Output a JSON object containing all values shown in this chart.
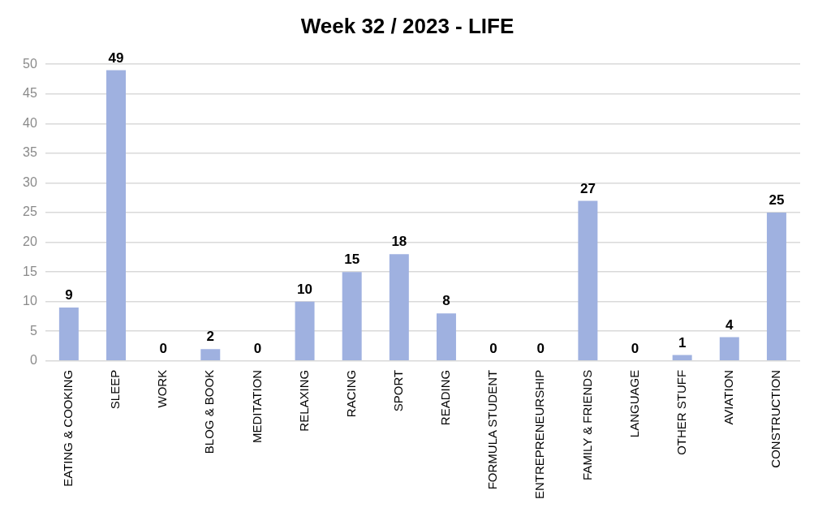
{
  "chart_data": {
    "type": "bar",
    "title": "Week 32 / 2023 - LIFE",
    "categories": [
      "EATING & COOKING",
      "SLEEP",
      "WORK",
      "BLOG & BOOK",
      "MEDITATION",
      "RELAXING",
      "RACING",
      "SPORT",
      "READING",
      "FORMULA STUDENT",
      "ENTREPRENEURSHIP",
      "FAMILY & FRIENDS",
      "LANGUAGE",
      "OTHER STUFF",
      "AVIATION",
      "CONSTRUCTION"
    ],
    "values": [
      9,
      49,
      0,
      2,
      0,
      10,
      15,
      18,
      8,
      0,
      0,
      27,
      0,
      1,
      4,
      25
    ],
    "color": "#9fb1e0",
    "ylim": [
      0,
      50
    ],
    "yticks": [
      0,
      5,
      10,
      15,
      20,
      25,
      30,
      35,
      40,
      45,
      50
    ],
    "grid": "y",
    "legend": false,
    "data_labels": true
  }
}
